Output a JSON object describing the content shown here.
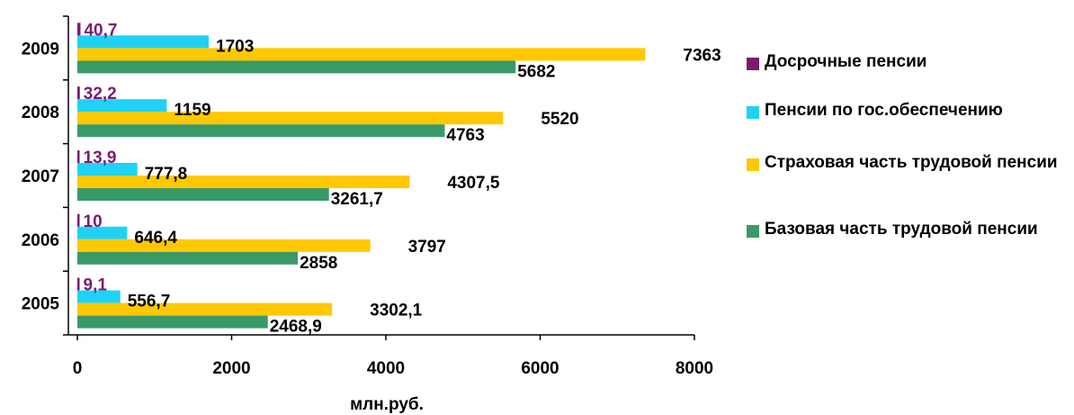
{
  "chart_data": {
    "type": "bar",
    "orientation": "horizontal",
    "categories": [
      "2005",
      "2006",
      "2007",
      "2008",
      "2009"
    ],
    "xlabel": "млн.руб.",
    "xlim": [
      0,
      8000
    ],
    "xticks": [
      "0",
      "2000",
      "4000",
      "6000",
      "8000"
    ],
    "grid": false,
    "legend_position": "right",
    "series": [
      {
        "name": "Досрочные пенсии",
        "color": "#7B1C6E",
        "label_color": "#7B1C6E",
        "values": [
          9.1,
          10,
          13.9,
          32.2,
          40.7
        ],
        "labels": [
          "9,1",
          "10",
          "13,9",
          "32,2",
          "40,7"
        ]
      },
      {
        "name": "Пенсии по гос.обеспечению",
        "color": "#1FD2F5",
        "label_color": "#000000",
        "values": [
          556.7,
          646.4,
          777.8,
          1159,
          1703
        ],
        "labels": [
          "556,7",
          "646,4",
          "777,8",
          "1159",
          "1703"
        ]
      },
      {
        "name": "Страховая часть трудовой пенсии",
        "color": "#FFC800",
        "label_color": "#000000",
        "values": [
          3302.1,
          3797,
          4307.5,
          5520,
          7363
        ],
        "labels": [
          "3302,1",
          "3797",
          "4307,5",
          "5520",
          "7363"
        ]
      },
      {
        "name": "Базовая часть трудовой пенсии",
        "color": "#3A9A67",
        "label_color": "#000000",
        "values": [
          2468.9,
          2858,
          3261.7,
          4763,
          5682
        ],
        "labels": [
          "2468,9",
          "2858",
          "3261,7",
          "4763",
          "5682"
        ]
      }
    ]
  }
}
